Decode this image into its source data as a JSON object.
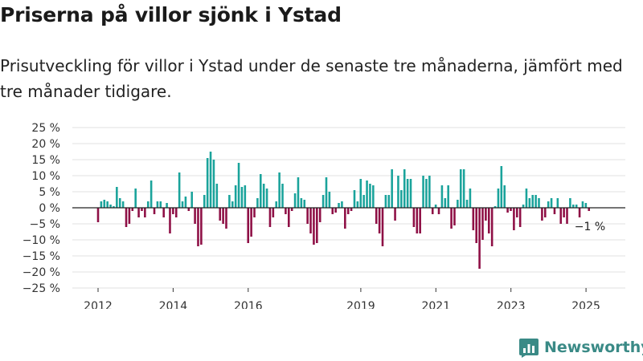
{
  "header": {
    "title": "Priserna på villor sjönk i Ystad",
    "subtitle": "Prisutveckling för villor i Ystad under de senaste tre månaderna, jämfört med tre månader tidigare."
  },
  "chart_data": {
    "type": "bar",
    "title": "Priserna på villor sjönk i Ystad",
    "xlabel": "",
    "ylabel": "",
    "ylim": [
      -25,
      25
    ],
    "y_ticks": [
      "25 %",
      "20 %",
      "15 %",
      "10 %",
      "5 %",
      "0 %",
      "−5 %",
      "−10 %",
      "−15 %",
      "−20 %",
      "−25 %"
    ],
    "x_ticks": [
      "2012",
      "2014",
      "2016",
      "2019",
      "2021",
      "2023",
      "2025"
    ],
    "x_tick_values": [
      2012.0,
      2014.0,
      2016.0,
      2019.0,
      2021.0,
      2023.0,
      2025.0
    ],
    "start": 2012.0,
    "step_years": 0.0833,
    "positive_color": "#1aa39b",
    "negative_color": "#8e0f45",
    "annotation": "−1 %",
    "values": [
      -4.5,
      2,
      2.5,
      2,
      1,
      0.5,
      6.5,
      3,
      2,
      -6,
      -5,
      -1,
      6,
      -3,
      -1,
      -3,
      2,
      8.5,
      -2,
      2,
      2,
      -3,
      1.5,
      -8,
      -2,
      -3,
      11,
      2,
      3.5,
      -1,
      5,
      -5,
      -12,
      -11.5,
      4,
      15.5,
      17.5,
      15,
      7.5,
      -4,
      -5,
      -6.5,
      4,
      2,
      7,
      14,
      6.5,
      7,
      -11,
      -9,
      -3,
      3,
      10.5,
      7.5,
      6,
      -6,
      -3,
      2,
      11,
      7.5,
      -2,
      -6,
      -1,
      4.5,
      9.5,
      3,
      2.5,
      -5,
      -8,
      -11.5,
      -11,
      -4.5,
      4,
      9.5,
      5,
      -2,
      -1.5,
      1.5,
      2,
      -6.5,
      -2,
      -1,
      5.5,
      2,
      9,
      4,
      8.5,
      7.5,
      7,
      -5,
      -8,
      -12,
      4,
      4,
      12,
      -4,
      10,
      5.5,
      12,
      9,
      9,
      -6,
      -8,
      -8,
      10,
      9,
      10,
      -2,
      1,
      -2,
      7,
      3,
      7,
      -6.5,
      -5.5,
      2.5,
      12,
      12,
      2.5,
      6,
      -7,
      -11,
      -19,
      -10,
      -4,
      -8,
      -12,
      0.5,
      6,
      13,
      7,
      -1.5,
      -1,
      -7,
      -3,
      -6,
      1,
      6,
      3,
      4,
      4,
      3,
      -4,
      -3,
      2,
      3,
      -2,
      3,
      -5,
      -3,
      -5,
      3,
      1,
      1,
      -3,
      2,
      1.5,
      -1
    ]
  },
  "brand": {
    "name": "Newsworthy"
  },
  "colors": {
    "brand": "#3a8a86",
    "text": "#1a1a1a",
    "grid": "#e2e2e2",
    "axis": "#222222"
  }
}
